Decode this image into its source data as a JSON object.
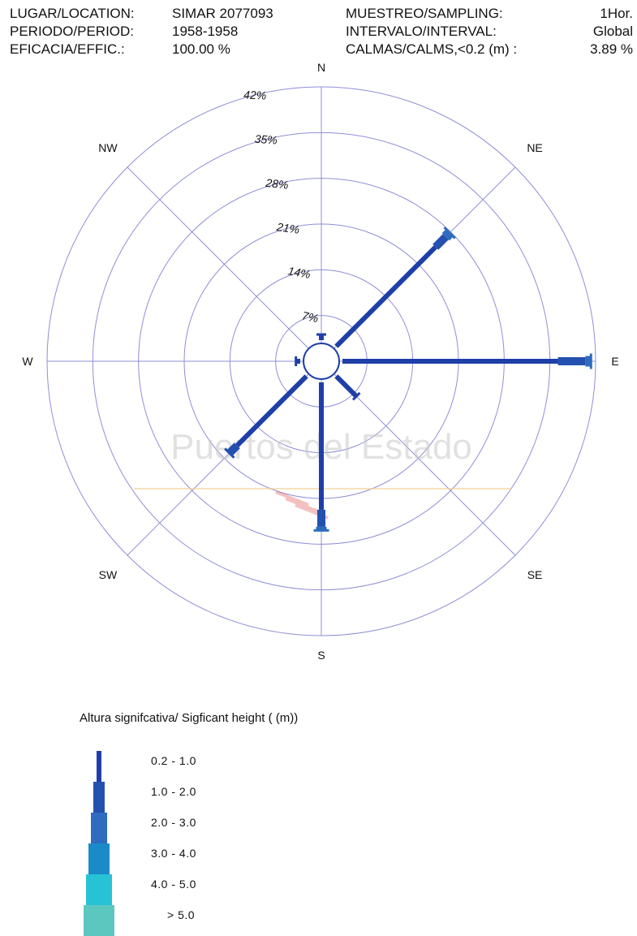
{
  "header": {
    "location_label": "LUGAR/LOCATION:",
    "location_value": "SIMAR 2077093",
    "period_label": "PERIODO/PERIOD:",
    "period_value": "1958-1958",
    "efficacy_label": "EFICACIA/EFFIC.:",
    "efficacy_value": "100.00 %",
    "sampling_label": "MUESTREO/SAMPLING:",
    "sampling_value": "1Hor.",
    "interval_label": "INTERVALO/INTERVAL:",
    "interval_value": "Global",
    "calms_label": "CALMAS/CALMS,<0.2 (m)  :",
    "calms_value": "3.89 %"
  },
  "watermark": "Puertos del Estado",
  "chart_data": {
    "type": "polar-rose",
    "ring_labels": [
      "7%",
      "14%",
      "21%",
      "28%",
      "35%",
      "42%"
    ],
    "ring_values": [
      7,
      14,
      21,
      28,
      35,
      42
    ],
    "r_max": 42,
    "calm_radius_pct": 3.89,
    "directions": [
      "N",
      "NE",
      "E",
      "SE",
      "S",
      "SW",
      "W",
      "NW"
    ],
    "legend_title": "Altura signifcativa/ Sigficant height   ( (m))",
    "height_classes": [
      {
        "label": "0.2 -  1.0",
        "color": "#1f3fa8"
      },
      {
        "label": "1.0 -  2.0",
        "color": "#2450b0"
      },
      {
        "label": "2.0 -  3.0",
        "color": "#2f6cbf"
      },
      {
        "label": "3.0 -  4.0",
        "color": "#1b8ac9"
      },
      {
        "label": "4.0 -  5.0",
        "color": "#28c2d6"
      },
      {
        "label": ">  5.0",
        "color": "#5cc7bf"
      }
    ],
    "series": [
      {
        "direction": "N",
        "segments": [
          0.8
        ]
      },
      {
        "direction": "NE",
        "segments": [
          21.5,
          2.2,
          0.8
        ]
      },
      {
        "direction": "E",
        "segments": [
          33.0,
          4.2,
          0.8
        ]
      },
      {
        "direction": "SE",
        "segments": [
          4.3
        ]
      },
      {
        "direction": "S",
        "segments": [
          19.5,
          2.6,
          0.5
        ]
      },
      {
        "direction": "SW",
        "segments": [
          15.0,
          1.6
        ]
      },
      {
        "direction": "W",
        "segments": [
          0.6
        ]
      }
    ]
  }
}
